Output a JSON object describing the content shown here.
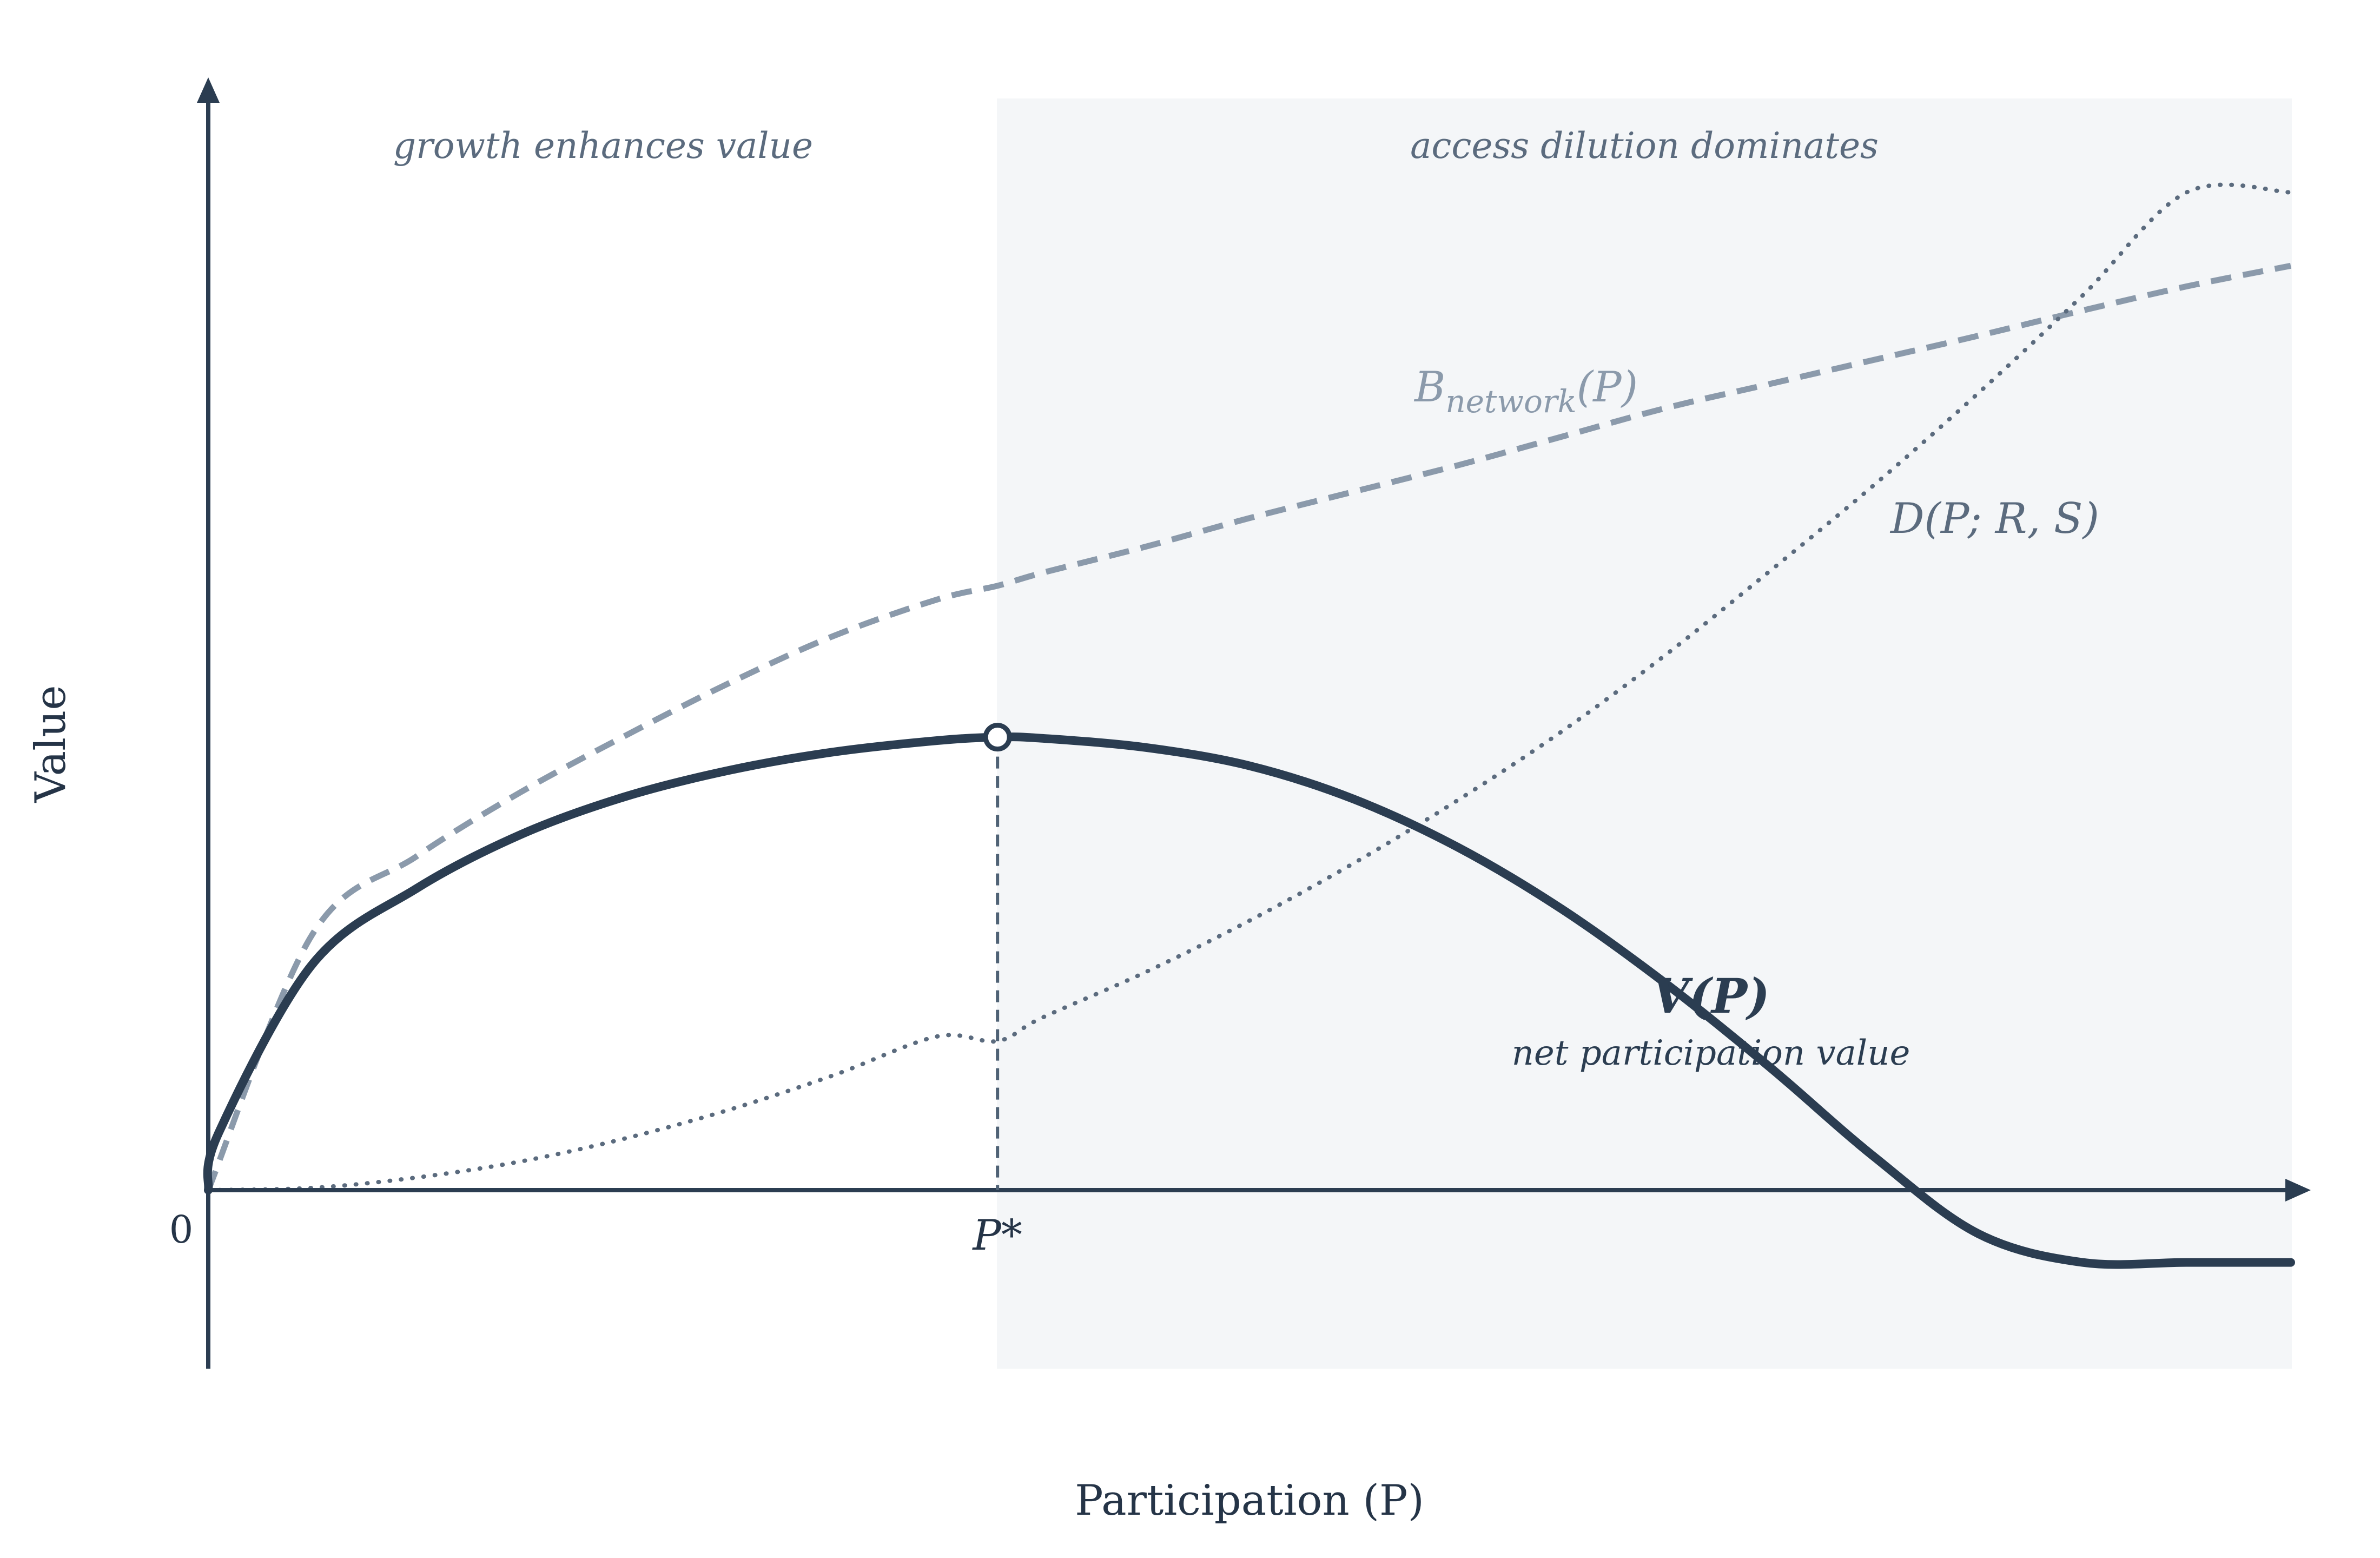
{
  "chart_data": {
    "type": "line",
    "title": "",
    "xlabel": "Participation (P)",
    "ylabel": "Value",
    "xlim": [
      0,
      1
    ],
    "ylim": [
      -0.16,
      1.0
    ],
    "origin_tick": "0",
    "grid": false,
    "optimum": {
      "x": 0.379,
      "y": 0.395,
      "label": "P*"
    },
    "regions": [
      {
        "label": "growth enhances value",
        "x_range": [
          0,
          0.379
        ],
        "shaded": false
      },
      {
        "label": "access dilution dominates",
        "x_range": [
          0.379,
          1.0
        ],
        "shaded": true
      }
    ],
    "series": [
      {
        "key": "benefit",
        "name_main": "B",
        "name_sub": "network",
        "name_tail": "(P)",
        "style": "dashed",
        "color": "#8b9aab",
        "x": [
          0.0,
          0.05,
          0.1,
          0.15,
          0.2,
          0.25,
          0.3,
          0.35,
          0.379,
          0.4,
          0.45,
          0.5,
          0.55,
          0.6,
          0.65,
          0.7,
          0.75,
          0.8,
          0.85,
          0.9,
          0.95,
          1.0
        ],
        "y": [
          0.0,
          0.223,
          0.291,
          0.347,
          0.396,
          0.442,
          0.483,
          0.515,
          0.527,
          0.538,
          0.561,
          0.586,
          0.609,
          0.632,
          0.657,
          0.682,
          0.703,
          0.724,
          0.745,
          0.767,
          0.788,
          0.806
        ]
      },
      {
        "key": "dilution",
        "name": "D(P; R, S)",
        "style": "dotted",
        "color": "#5b6b7e",
        "x": [
          0.0,
          0.05,
          0.1,
          0.15,
          0.2,
          0.25,
          0.3,
          0.35,
          0.379,
          0.4,
          0.45,
          0.5,
          0.55,
          0.6,
          0.65,
          0.7,
          0.75,
          0.8,
          0.85,
          0.9,
          0.95,
          1.0
        ],
        "y": [
          0.0,
          0.002,
          0.011,
          0.025,
          0.045,
          0.07,
          0.1,
          0.134,
          0.13,
          0.15,
          0.19,
          0.235,
          0.285,
          0.34,
          0.4,
          0.467,
          0.54,
          0.615,
          0.695,
          0.78,
          0.87,
          0.87
        ]
      },
      {
        "key": "value",
        "name": "V(P)",
        "subtitle": "net participation value",
        "style": "solid",
        "color": "#2b3d51",
        "x": [
          0.0,
          0.005,
          0.05,
          0.1,
          0.15,
          0.2,
          0.25,
          0.3,
          0.35,
          0.379,
          0.4,
          0.45,
          0.5,
          0.55,
          0.6,
          0.65,
          0.7,
          0.75,
          0.8,
          0.85,
          0.9,
          0.95,
          1.0
        ],
        "y": [
          0.0,
          0.05,
          0.197,
          0.263,
          0.31,
          0.343,
          0.366,
          0.382,
          0.392,
          0.395,
          0.394,
          0.386,
          0.37,
          0.341,
          0.299,
          0.245,
          0.18,
          0.107,
          0.029,
          -0.038,
          -0.063,
          -0.063,
          -0.063
        ]
      }
    ]
  }
}
